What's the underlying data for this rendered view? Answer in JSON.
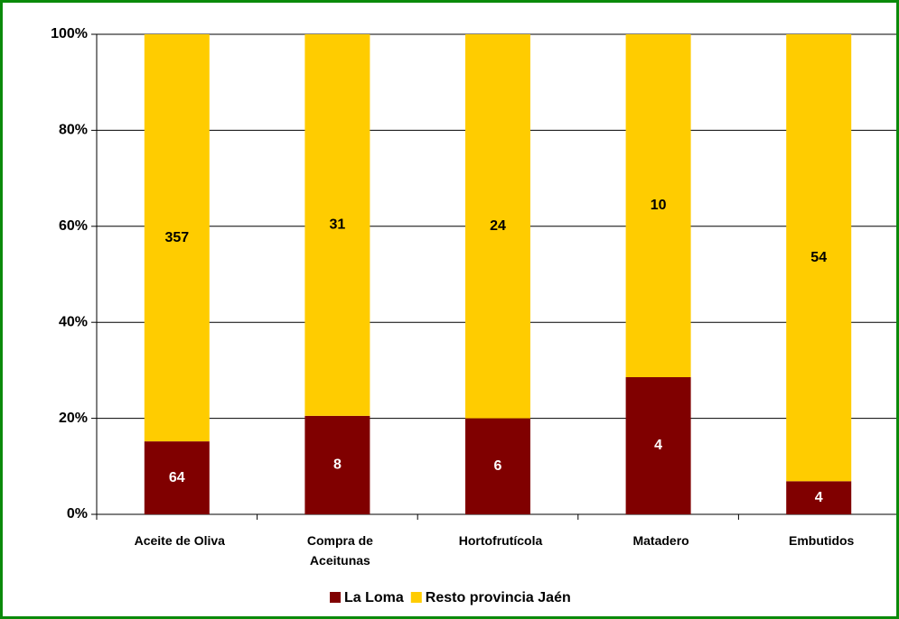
{
  "chart_data": {
    "type": "bar",
    "stacked": "percent",
    "categories": [
      "Aceite de Oliva",
      "Compra de Aceitunas",
      "Hortofrutícola",
      "Matadero",
      "Embutidos"
    ],
    "series": [
      {
        "name": "La Loma",
        "color": "#800000",
        "values": [
          64,
          8,
          6,
          4,
          4
        ]
      },
      {
        "name": "Resto provincia Jaén",
        "color": "#ffcc00",
        "values": [
          357,
          31,
          24,
          10,
          54
        ]
      }
    ],
    "ylim": [
      0,
      100
    ],
    "yticks": [
      {
        "value": 0,
        "label": "0%"
      },
      {
        "value": 20,
        "label": "20%"
      },
      {
        "value": 40,
        "label": "40%"
      },
      {
        "value": 60,
        "label": "60%"
      },
      {
        "value": 80,
        "label": "80%"
      },
      {
        "value": 100,
        "label": "100%"
      }
    ],
    "grid": true,
    "legend": "bottom"
  }
}
